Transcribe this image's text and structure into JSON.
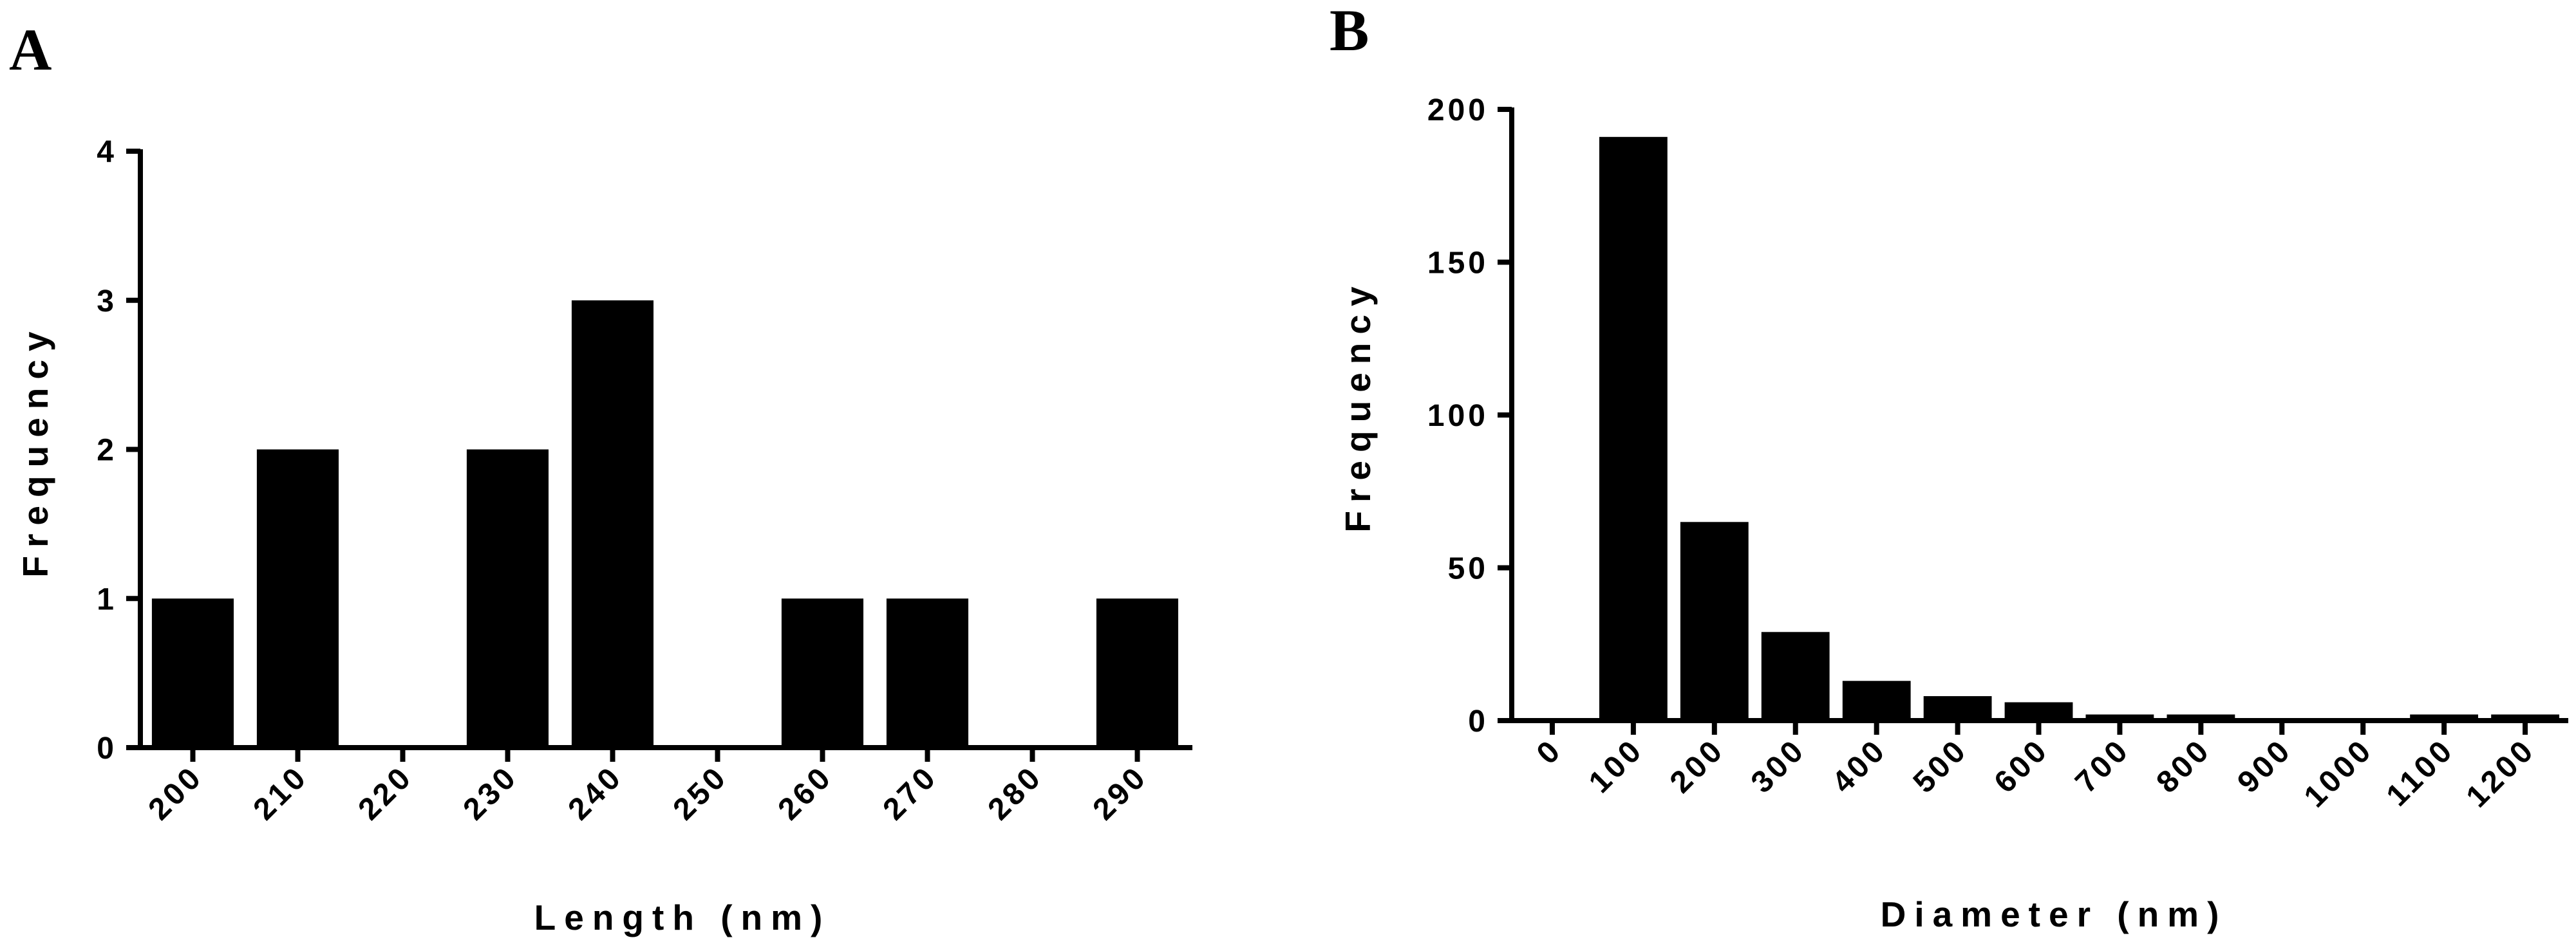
{
  "chart_data": [
    {
      "panel": "A",
      "type": "bar",
      "categories": [
        "200",
        "210",
        "220",
        "230",
        "240",
        "250",
        "260",
        "270",
        "280",
        "290"
      ],
      "values": [
        1,
        2,
        0,
        2,
        3,
        0,
        1,
        1,
        0,
        1
      ],
      "xlabel": "Length (nm)",
      "ylabel": "Frequency",
      "ylim": [
        0,
        4
      ],
      "yticks": [
        "0",
        "1",
        "2",
        "3",
        "4"
      ],
      "grid": false,
      "bar_color": "#000000"
    },
    {
      "panel": "B",
      "type": "bar",
      "categories": [
        "0",
        "100",
        "200",
        "300",
        "400",
        "500",
        "600",
        "700",
        "800",
        "900",
        "1000",
        "1100",
        "1200"
      ],
      "values": [
        0,
        191,
        65,
        29,
        13,
        8,
        6,
        2,
        2,
        0,
        0,
        2,
        2
      ],
      "xlabel": "Diameter (nm)",
      "ylabel": "Frequency",
      "ylim": [
        0,
        200
      ],
      "yticks": [
        "0",
        "50",
        "100",
        "150",
        "200"
      ],
      "grid": false,
      "bar_color": "#000000"
    }
  ]
}
